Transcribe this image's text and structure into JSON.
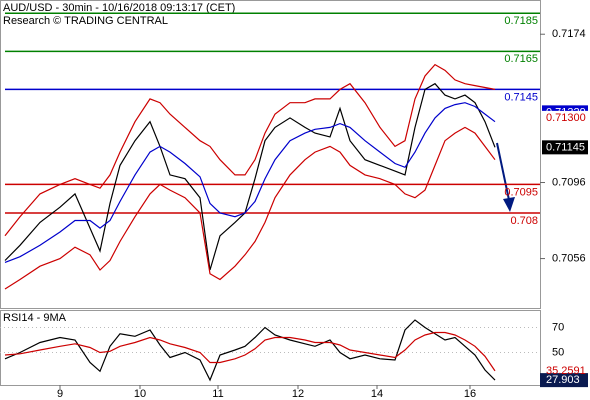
{
  "chart_data": {
    "type": "line",
    "title": "AUD/USD - 30min - 10/16/2018 09:13:17 (CET)",
    "subtitle": "Research © TRADING CENTRAL",
    "x": [
      1.5,
      6,
      12,
      18,
      22.5,
      27,
      30,
      33,
      36,
      40.5,
      45,
      48,
      51,
      55.5,
      60,
      63,
      66,
      70.5,
      73.5,
      76.5,
      79.5,
      82.5,
      87,
      91.5,
      94.5,
      99,
      102,
      105,
      109.5,
      114,
      118.5,
      121.5,
      124.5,
      127.5,
      130.5,
      133.5,
      136.5,
      139.5,
      142.5,
      145.5,
      148.5
    ],
    "xlim": [
      0,
      162
    ],
    "xticks": [
      {
        "value": 18,
        "label": "9"
      },
      {
        "value": 42,
        "label": "10"
      },
      {
        "value": 65.4,
        "label": "11"
      },
      {
        "value": 89.4,
        "label": "12"
      },
      {
        "value": 113.1,
        "label": "14"
      },
      {
        "value": 141,
        "label": "16"
      }
    ],
    "ylim": [
      0.703,
      0.7192
    ],
    "yticks": [
      0.7174,
      0.7096,
      0.7056
    ],
    "series": [
      {
        "name": "AUD/USD",
        "color": "#000000",
        "values": [
          0.7055,
          0.7063,
          0.7075,
          0.7083,
          0.709,
          0.7072,
          0.706,
          0.7085,
          0.7105,
          0.7118,
          0.7128,
          0.7115,
          0.71,
          0.7098,
          0.7088,
          0.705,
          0.7068,
          0.7075,
          0.708,
          0.7098,
          0.7118,
          0.7125,
          0.713,
          0.7125,
          0.7122,
          0.712,
          0.7135,
          0.7118,
          0.7108,
          0.7105,
          0.7102,
          0.71,
          0.7125,
          0.7145,
          0.7148,
          0.7142,
          0.714,
          0.7142,
          0.7138,
          0.7128,
          0.71145
        ]
      },
      {
        "color": "#cc0000",
        "values": [
          0.7068,
          0.7078,
          0.709,
          0.7095,
          0.7098,
          0.7095,
          0.7093,
          0.71,
          0.7112,
          0.7128,
          0.714,
          0.7138,
          0.7132,
          0.7125,
          0.7118,
          0.7115,
          0.7108,
          0.71,
          0.71,
          0.7108,
          0.7122,
          0.7132,
          0.7138,
          0.7138,
          0.714,
          0.714,
          0.7145,
          0.7148,
          0.7138,
          0.7125,
          0.7115,
          0.7118,
          0.714,
          0.7152,
          0.7158,
          0.7155,
          0.715,
          0.7148,
          0.7147,
          0.7146,
          0.7145
        ]
      },
      {
        "color": "#cc0000",
        "values": [
          0.704,
          0.7045,
          0.7052,
          0.7056,
          0.7062,
          0.7058,
          0.705,
          0.7055,
          0.7065,
          0.7078,
          0.709,
          0.7095,
          0.7092,
          0.7088,
          0.708,
          0.7048,
          0.7045,
          0.7052,
          0.7058,
          0.7065,
          0.7075,
          0.7088,
          0.71,
          0.7108,
          0.7112,
          0.7115,
          0.7112,
          0.7105,
          0.71,
          0.7098,
          0.7095,
          0.709,
          0.7088,
          0.7092,
          0.7105,
          0.7118,
          0.7122,
          0.7125,
          0.7122,
          0.7115,
          0.7108
        ]
      },
      {
        "color": "#0000cc",
        "values": [
          0.7054,
          0.7057,
          0.7063,
          0.707,
          0.7076,
          0.7076,
          0.7072,
          0.7076,
          0.7086,
          0.71,
          0.7112,
          0.7115,
          0.7112,
          0.7106,
          0.7099,
          0.7085,
          0.708,
          0.7078,
          0.708,
          0.7086,
          0.7098,
          0.7108,
          0.7118,
          0.7122,
          0.7124,
          0.7125,
          0.7127,
          0.7125,
          0.7118,
          0.7112,
          0.7106,
          0.7104,
          0.7112,
          0.7122,
          0.713,
          0.7135,
          0.7137,
          0.7138,
          0.7136,
          0.7132,
          0.7128
        ]
      }
    ],
    "levels": [
      {
        "value": 0.7185,
        "color": "#008000"
      },
      {
        "value": 0.7165,
        "color": "#008000"
      },
      {
        "value": 0.7145,
        "color": "#0000cc"
      },
      {
        "value": 0.7095,
        "color": "#cc0000"
      },
      {
        "value": 0.708,
        "color": "#cc0000"
      }
    ],
    "price_tags": [
      {
        "value": 0.71329,
        "color": "#0000cc"
      },
      {
        "value": 0.713,
        "label": "0.71300",
        "color": "#cc0000"
      },
      {
        "value": 0.71145,
        "color": "#000000"
      }
    ],
    "rsi": {
      "title": "RSI14 - 9MA",
      "ylim": [
        24,
        84
      ],
      "yticks": [
        70,
        50
      ],
      "series": [
        {
          "color": "#000000",
          "values": [
            45,
            50,
            58,
            62,
            60,
            42,
            35,
            55,
            65,
            63,
            68,
            56,
            46,
            50,
            44,
            28,
            48,
            52,
            55,
            62,
            70,
            64,
            60,
            57,
            55,
            60,
            50,
            45,
            48,
            45,
            44,
            68,
            76,
            70,
            65,
            60,
            62,
            55,
            48,
            36,
            27.903
          ]
        },
        {
          "color": "#cc0000",
          "values": [
            48,
            49,
            52,
            55,
            57,
            54,
            50,
            51,
            55,
            58,
            62,
            60,
            57,
            54,
            50,
            42,
            42,
            45,
            48,
            53,
            60,
            62,
            62,
            60,
            58,
            58,
            56,
            52,
            50,
            48,
            46,
            52,
            60,
            64,
            66,
            66,
            64,
            60,
            55,
            47,
            35.2591
          ]
        }
      ]
    }
  }
}
